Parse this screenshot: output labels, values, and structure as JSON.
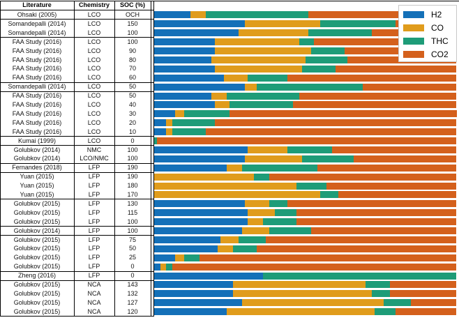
{
  "headers": {
    "literature": "Literature",
    "chemistry": "Chemistry",
    "soc": "SOC (%)"
  },
  "chart_data": {
    "type": "bar",
    "stacked": true,
    "orientation": "horizontal",
    "normalized_percent": true,
    "xlim": [
      0,
      100
    ],
    "series_order": [
      "H2",
      "CO",
      "THC",
      "CO2"
    ],
    "colors": {
      "H2": "#1470b8",
      "CO": "#e09c1c",
      "THC": "#1e9c78",
      "CO2": "#d4601c"
    },
    "legend": {
      "position": "top-right",
      "entries": [
        "H2",
        "CO",
        "THC",
        "CO2"
      ]
    },
    "rows": [
      {
        "literature": "Ohsaki (2005)",
        "chemistry": "LCO",
        "soc": "OCH",
        "values": [
          12,
          5,
          34,
          49
        ]
      },
      {
        "literature": "Somandepalli (2014)",
        "chemistry": "LCO",
        "soc": "150",
        "values": [
          30,
          25,
          25,
          20
        ]
      },
      {
        "literature": "Somandepalli (2014)",
        "chemistry": "LCO",
        "soc": "100",
        "values": [
          28,
          23,
          21,
          28
        ]
      },
      {
        "literature": "FAA Study (2016)",
        "chemistry": "LCO",
        "soc": "100",
        "values": [
          20,
          28,
          5,
          47
        ]
      },
      {
        "literature": "FAA Study (2016)",
        "chemistry": "LCO",
        "soc": "90",
        "values": [
          20,
          32,
          11,
          37
        ]
      },
      {
        "literature": "FAA Study (2016)",
        "chemistry": "LCO",
        "soc": "80",
        "values": [
          19,
          31,
          14,
          36
        ]
      },
      {
        "literature": "FAA Study (2016)",
        "chemistry": "LCO",
        "soc": "70",
        "values": [
          20,
          29,
          11,
          40
        ]
      },
      {
        "literature": "FAA Study (2016)",
        "chemistry": "LCO",
        "soc": "60",
        "values": [
          23,
          8,
          13,
          56
        ]
      },
      {
        "literature": "Somandepalli (2014)",
        "chemistry": "LCO",
        "soc": "50",
        "values": [
          30,
          4,
          35,
          31
        ]
      },
      {
        "literature": "FAA Study (2016)",
        "chemistry": "LCO",
        "soc": "50",
        "values": [
          19,
          5,
          24,
          52
        ]
      },
      {
        "literature": "FAA Study (2016)",
        "chemistry": "LCO",
        "soc": "40",
        "values": [
          20,
          5,
          21,
          54
        ]
      },
      {
        "literature": "FAA Study (2016)",
        "chemistry": "LCO",
        "soc": "30",
        "values": [
          7,
          3,
          15,
          75
        ]
      },
      {
        "literature": "FAA Study (2016)",
        "chemistry": "LCO",
        "soc": "20",
        "values": [
          4,
          2,
          14,
          80
        ]
      },
      {
        "literature": "FAA Study (2016)",
        "chemistry": "LCO",
        "soc": "10",
        "values": [
          4,
          2,
          11,
          83
        ]
      },
      {
        "literature": "Kumai (1999)",
        "chemistry": "LCO",
        "soc": "0",
        "values": [
          0,
          0,
          1,
          99
        ]
      },
      {
        "literature": "Golubkov (2014)",
        "chemistry": "NMC",
        "soc": "100",
        "values": [
          31,
          13,
          15,
          41
        ]
      },
      {
        "literature": "Golubkov (2014)",
        "chemistry": "LCO/NMC",
        "soc": "100",
        "values": [
          30,
          19,
          17,
          34
        ]
      },
      {
        "literature": "Fernandes (2018)",
        "chemistry": "LFP",
        "soc": "190",
        "values": [
          24,
          5,
          25,
          46
        ]
      },
      {
        "literature": "Yuan (2015)",
        "chemistry": "LFP",
        "soc": "190",
        "values": [
          0,
          33,
          5,
          62
        ]
      },
      {
        "literature": "Yuan (2015)",
        "chemistry": "LFP",
        "soc": "180",
        "values": [
          0,
          47,
          10,
          43
        ]
      },
      {
        "literature": "Yuan (2015)",
        "chemistry": "LFP",
        "soc": "170",
        "values": [
          0,
          55,
          6,
          39
        ]
      },
      {
        "literature": "Golubkov (2015)",
        "chemistry": "LFP",
        "soc": "130",
        "values": [
          30,
          8,
          6,
          56
        ]
      },
      {
        "literature": "Golubkov (2015)",
        "chemistry": "LFP",
        "soc": "115",
        "values": [
          31,
          9,
          7,
          53
        ]
      },
      {
        "literature": "Golubkov (2015)",
        "chemistry": "LFP",
        "soc": "100",
        "values": [
          31,
          5,
          11,
          53
        ]
      },
      {
        "literature": "Golubkov (2014)",
        "chemistry": "LFP",
        "soc": "100",
        "values": [
          29,
          9,
          14,
          48
        ]
      },
      {
        "literature": "Golubkov (2015)",
        "chemistry": "LFP",
        "soc": "75",
        "values": [
          22,
          6,
          9,
          63
        ]
      },
      {
        "literature": "Golubkov (2015)",
        "chemistry": "LFP",
        "soc": "50",
        "values": [
          21,
          5,
          8,
          66
        ]
      },
      {
        "literature": "Golubkov (2015)",
        "chemistry": "LFP",
        "soc": "25",
        "values": [
          7,
          3,
          5,
          85
        ]
      },
      {
        "literature": "Golubkov (2015)",
        "chemistry": "LFP",
        "soc": "0",
        "values": [
          2,
          2,
          2,
          94
        ]
      },
      {
        "literature": "Zheng (2016)",
        "chemistry": "LFP",
        "soc": "0",
        "values": [
          36,
          0,
          64,
          0
        ]
      },
      {
        "literature": "Golubkov (2015)",
        "chemistry": "NCA",
        "soc": "143",
        "values": [
          26,
          44,
          8,
          22
        ]
      },
      {
        "literature": "Golubkov (2015)",
        "chemistry": "NCA",
        "soc": "132",
        "values": [
          26,
          46,
          6,
          22
        ]
      },
      {
        "literature": "Golubkov (2015)",
        "chemistry": "NCA",
        "soc": "127",
        "values": [
          29,
          47,
          9,
          15
        ]
      },
      {
        "literature": "Golubkov (2015)",
        "chemistry": "NCA",
        "soc": "120",
        "values": [
          24,
          49,
          7,
          20
        ]
      }
    ]
  }
}
